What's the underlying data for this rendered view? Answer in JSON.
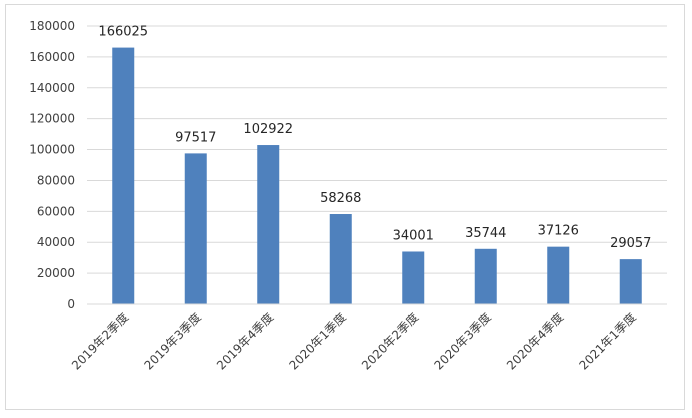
{
  "chart_data": {
    "type": "bar",
    "categories": [
      "2019年2季度",
      "2019年3季度",
      "2019年4季度",
      "2020年1季度",
      "2020年2季度",
      "2020年3季度",
      "2020年4季度",
      "2021年1季度"
    ],
    "values": [
      166025,
      97517,
      102922,
      58268,
      34001,
      35744,
      37126,
      29057
    ],
    "ylim": [
      0,
      180000
    ],
    "yticks": [
      0,
      20000,
      40000,
      60000,
      80000,
      100000,
      120000,
      140000,
      160000,
      180000
    ],
    "grid": true,
    "data_labels": true,
    "bar_color": "#4f81bd",
    "grid_color": "#d9d9d9"
  }
}
